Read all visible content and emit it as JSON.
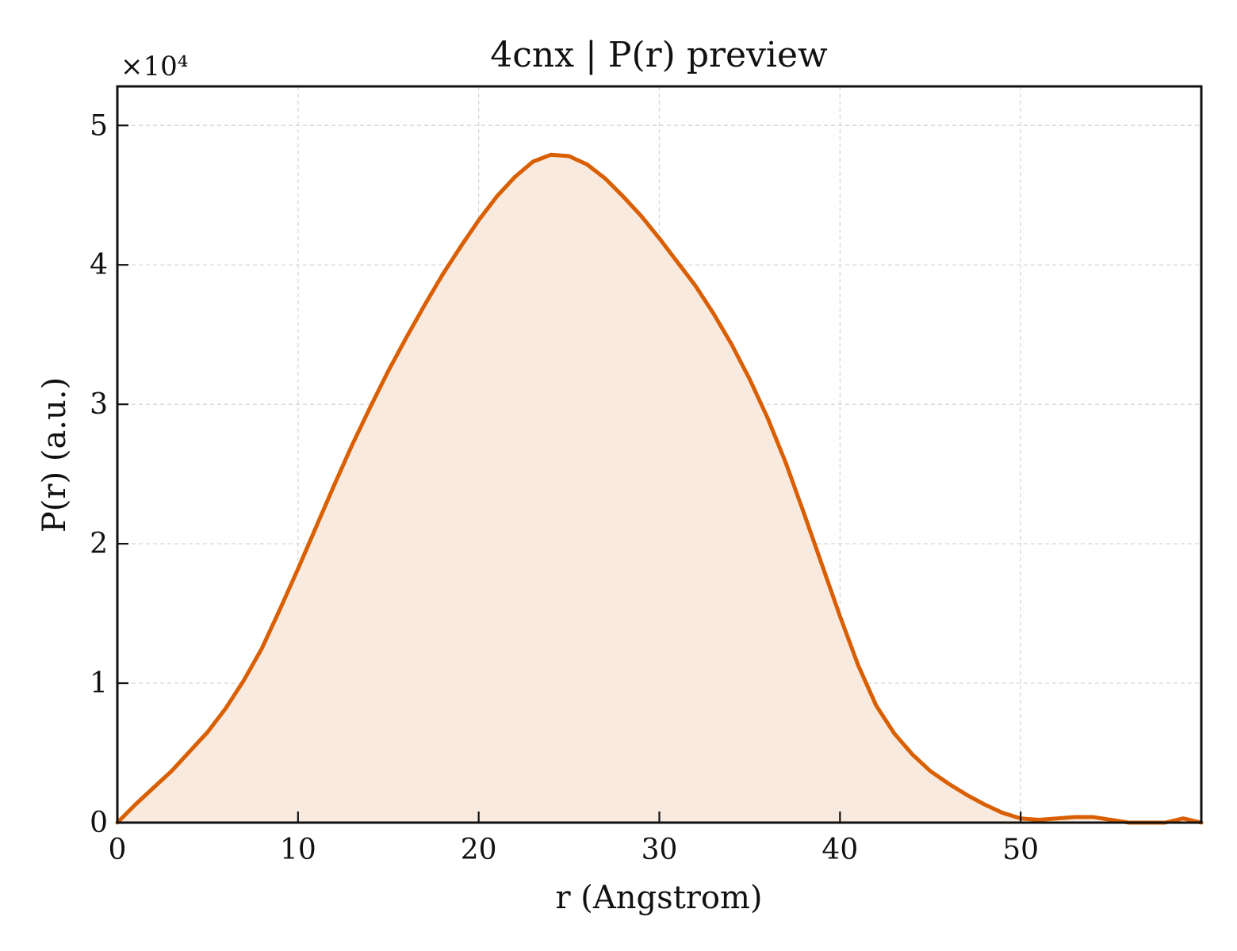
{
  "chart_data": {
    "type": "area",
    "title": "4cnx | P(r) preview",
    "xlabel": "r (Angstrom)",
    "ylabel": "P(r) (a.u.)",
    "y_multiplier_label": "×10⁴",
    "xlim": [
      0,
      60
    ],
    "ylim": [
      0,
      5.28
    ],
    "xticks": [
      0,
      10,
      20,
      30,
      40,
      50
    ],
    "yticks": [
      0,
      1,
      2,
      3,
      4,
      5
    ],
    "xtick_labels": [
      "0",
      "10",
      "20",
      "30",
      "40",
      "50"
    ],
    "ytick_labels": [
      "0",
      "1",
      "2",
      "3",
      "4",
      "5"
    ],
    "grid": true,
    "colors": {
      "line": "#d95f02",
      "fill": "#f9eadf"
    },
    "series": [
      {
        "x": [
          0,
          1,
          2,
          3,
          4,
          5,
          6,
          7,
          8,
          9,
          10,
          11,
          12,
          13,
          14,
          15,
          16,
          17,
          18,
          19,
          20,
          21,
          22,
          23,
          24,
          25,
          26,
          27,
          28,
          29,
          30,
          31,
          32,
          33,
          34,
          35,
          36,
          37,
          38,
          39,
          40,
          41,
          42,
          43,
          44,
          45,
          46,
          47,
          48,
          49,
          50,
          51,
          52,
          53,
          54,
          55,
          56,
          57,
          58,
          59,
          60
        ],
        "y": [
          0,
          0.13,
          0.25,
          0.37,
          0.51,
          0.65,
          0.82,
          1.02,
          1.25,
          1.53,
          1.82,
          2.12,
          2.42,
          2.71,
          2.98,
          3.24,
          3.48,
          3.71,
          3.93,
          4.13,
          4.32,
          4.49,
          4.63,
          4.74,
          4.79,
          4.78,
          4.72,
          4.62,
          4.49,
          4.35,
          4.19,
          4.02,
          3.85,
          3.65,
          3.43,
          3.18,
          2.9,
          2.58,
          2.22,
          1.85,
          1.48,
          1.13,
          0.84,
          0.64,
          0.49,
          0.37,
          0.28,
          0.2,
          0.13,
          0.07,
          0.03,
          0.02,
          0.03,
          0.04,
          0.04,
          0.02,
          0.0,
          0.0,
          0.0,
          0.03,
          0.0
        ]
      }
    ]
  }
}
